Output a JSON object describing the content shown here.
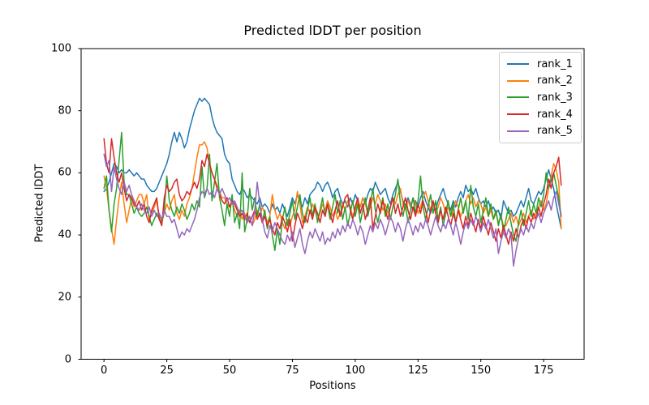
{
  "chart_data": {
    "type": "line",
    "title": "Predicted lDDT per position",
    "xlabel": "Positions",
    "ylabel": "Predicted lDDT",
    "xlim": [
      -9.1,
      191.1
    ],
    "ylim": [
      0,
      100
    ],
    "xticks": [
      0,
      25,
      50,
      75,
      100,
      125,
      150,
      175
    ],
    "yticks": [
      0,
      20,
      40,
      60,
      80,
      100
    ],
    "grid": false,
    "legend": {
      "position": "upper right",
      "entries": [
        "rank_1",
        "rank_2",
        "rank_3",
        "rank_4",
        "rank_5"
      ]
    },
    "x_start": 0,
    "x_step": 1,
    "n_positions": 183,
    "series": [
      {
        "name": "rank_1",
        "color": "#1f77b4",
        "values": [
          54,
          55,
          57,
          60,
          63,
          62,
          60,
          61,
          60,
          60,
          61,
          60,
          59,
          60,
          59,
          58,
          58,
          56,
          55,
          54,
          54,
          55,
          57,
          59,
          61,
          63,
          66,
          70,
          73,
          70,
          73,
          71,
          68,
          70,
          74,
          77,
          80,
          82,
          84,
          83,
          84,
          83,
          82,
          78,
          75,
          73,
          72,
          71,
          66,
          64,
          63,
          58,
          56,
          54,
          53,
          55,
          54,
          52,
          53,
          52,
          51,
          50,
          52,
          49,
          50,
          49,
          47,
          50,
          48,
          49,
          47,
          50,
          48,
          46,
          49,
          52,
          50,
          53,
          51,
          49,
          52,
          50,
          53,
          54,
          55,
          57,
          56,
          54,
          56,
          57,
          55,
          52,
          54,
          55,
          52,
          50,
          51,
          49,
          52,
          50,
          53,
          51,
          49,
          52,
          50,
          53,
          55,
          54,
          57,
          55,
          53,
          54,
          55,
          52,
          50,
          53,
          55,
          57,
          54,
          51,
          49,
          52,
          50,
          48,
          51,
          49,
          52,
          54,
          51,
          49,
          47,
          50,
          48,
          51,
          53,
          55,
          52,
          50,
          48,
          51,
          49,
          52,
          54,
          52,
          56,
          54,
          55,
          53,
          55,
          52,
          50,
          51,
          49,
          51,
          48,
          49,
          47,
          48,
          45,
          51,
          49,
          47,
          48,
          46,
          47,
          49,
          51,
          49,
          52,
          55,
          51,
          50,
          52,
          54,
          53,
          55,
          58,
          61,
          58,
          55,
          50,
          46,
          42
        ]
      },
      {
        "name": "rank_2",
        "color": "#ff7f0e",
        "values": [
          59,
          55,
          48,
          42,
          37,
          45,
          52,
          57,
          50,
          44,
          48,
          52,
          49,
          51,
          53,
          53,
          50,
          53,
          45,
          47,
          49,
          51,
          46,
          44,
          47,
          50,
          48,
          51,
          53,
          47,
          45,
          48,
          46,
          50,
          52,
          55,
          60,
          65,
          69,
          69,
          70,
          68,
          63,
          60,
          58,
          56,
          54,
          52,
          52,
          50,
          49,
          51,
          48,
          46,
          48,
          45,
          47,
          44,
          46,
          43,
          45,
          48,
          46,
          49,
          47,
          44,
          46,
          53,
          48,
          45,
          47,
          44,
          42,
          45,
          43,
          46,
          48,
          54,
          50,
          44,
          46,
          49,
          47,
          50,
          48,
          45,
          47,
          50,
          48,
          51,
          49,
          46,
          48,
          45,
          47,
          50,
          48,
          51,
          49,
          46,
          48,
          51,
          49,
          52,
          50,
          47,
          49,
          52,
          50,
          53,
          51,
          48,
          50,
          47,
          49,
          52,
          50,
          53,
          55,
          50,
          48,
          51,
          49,
          52,
          50,
          47,
          49,
          52,
          54,
          51,
          48,
          50,
          47,
          49,
          52,
          50,
          47,
          49,
          46,
          48,
          51,
          49,
          46,
          48,
          51,
          53,
          50,
          52,
          49,
          51,
          50,
          47,
          49,
          46,
          48,
          45,
          47,
          44,
          46,
          43,
          43,
          45,
          47,
          44,
          46,
          43,
          45,
          47,
          44,
          46,
          48,
          45,
          47,
          49,
          51,
          48,
          50,
          55,
          59,
          63,
          61,
          57,
          42
        ]
      },
      {
        "name": "rank_3",
        "color": "#2ca02c",
        "values": [
          55,
          59,
          48,
          41,
          50,
          55,
          64,
          73,
          57,
          53,
          53,
          50,
          47,
          49,
          47,
          46,
          47,
          49,
          46,
          43,
          45,
          47,
          45,
          44,
          48,
          59,
          51,
          48,
          46,
          49,
          47,
          50,
          48,
          45,
          47,
          50,
          48,
          51,
          49,
          62,
          52,
          55,
          66,
          51,
          57,
          63,
          52,
          48,
          43,
          50,
          46,
          53,
          44,
          47,
          42,
          60,
          41,
          45,
          55,
          48,
          52,
          46,
          50,
          44,
          48,
          42,
          46,
          40,
          35,
          42,
          37,
          45,
          49,
          43,
          47,
          51,
          45,
          49,
          53,
          47,
          44,
          48,
          52,
          46,
          50,
          44,
          48,
          52,
          46,
          50,
          45,
          49,
          53,
          47,
          51,
          45,
          49,
          43,
          47,
          51,
          46,
          50,
          44,
          48,
          52,
          46,
          50,
          55,
          48,
          44,
          48,
          52,
          46,
          50,
          45,
          49,
          53,
          58,
          50,
          46,
          50,
          44,
          48,
          52,
          47,
          51,
          59,
          49,
          45,
          49,
          53,
          47,
          51,
          45,
          49,
          43,
          47,
          51,
          46,
          50,
          44,
          48,
          52,
          47,
          51,
          45,
          56,
          49,
          46,
          50,
          44,
          48,
          52,
          46,
          50,
          45,
          48,
          43,
          47,
          41,
          45,
          49,
          44,
          40,
          38,
          44,
          48,
          43,
          47,
          51,
          46,
          50,
          47,
          52,
          49,
          53,
          60,
          55,
          58,
          60,
          56,
          52,
          46
        ]
      },
      {
        "name": "rank_4",
        "color": "#d62728",
        "values": [
          71,
          63,
          60,
          71,
          65,
          60,
          57,
          60,
          55,
          51,
          53,
          52,
          50,
          49,
          51,
          48,
          50,
          46,
          44,
          48,
          50,
          52,
          45,
          43,
          52,
          56,
          54,
          55,
          57,
          58,
          53,
          51,
          52,
          54,
          53,
          55,
          57,
          55,
          58,
          64,
          62,
          66,
          63,
          60,
          58,
          55,
          53,
          51,
          50,
          52,
          49,
          51,
          50,
          48,
          46,
          47,
          45,
          47,
          44,
          46,
          48,
          45,
          47,
          44,
          46,
          43,
          45,
          42,
          40,
          44,
          42,
          46,
          44,
          41,
          45,
          38,
          43,
          47,
          45,
          42,
          46,
          44,
          48,
          45,
          49,
          47,
          44,
          48,
          46,
          50,
          47,
          44,
          48,
          51,
          46,
          49,
          52,
          53,
          48,
          45,
          49,
          52,
          47,
          50,
          45,
          48,
          52,
          42,
          46,
          50,
          47,
          51,
          48,
          45,
          49,
          52,
          47,
          50,
          46,
          49,
          52,
          48,
          45,
          49,
          46,
          50,
          47,
          51,
          48,
          44,
          48,
          51,
          47,
          44,
          48,
          45,
          49,
          46,
          43,
          47,
          44,
          48,
          45,
          42,
          46,
          43,
          47,
          44,
          41,
          45,
          42,
          46,
          43,
          40,
          44,
          41,
          38,
          42,
          39,
          43,
          40,
          37,
          41,
          38,
          42,
          39,
          43,
          45,
          42,
          46,
          44,
          47,
          45,
          49,
          46,
          50,
          53,
          58,
          55,
          60,
          62,
          65,
          56
        ]
      },
      {
        "name": "rank_5",
        "color": "#9467bd",
        "values": [
          66,
          62,
          64,
          54,
          62,
          58,
          55,
          53,
          57,
          54,
          56,
          53,
          51,
          49,
          48,
          50,
          48,
          47,
          49,
          46,
          48,
          46,
          47,
          45,
          48,
          46,
          46,
          44,
          45,
          42,
          39,
          41,
          40,
          42,
          41,
          43,
          45,
          48,
          52,
          54,
          53,
          55,
          53,
          54,
          52,
          55,
          53,
          55,
          53,
          51,
          52,
          50,
          51,
          49,
          47,
          48,
          46,
          44,
          46,
          43,
          48,
          57,
          50,
          45,
          41,
          39,
          43,
          41,
          44,
          42,
          40,
          38,
          37,
          40,
          38,
          41,
          36,
          39,
          42,
          37,
          34,
          38,
          41,
          39,
          42,
          40,
          38,
          41,
          37,
          39,
          38,
          41,
          39,
          42,
          40,
          43,
          41,
          44,
          42,
          45,
          43,
          40,
          43,
          41,
          37,
          40,
          43,
          41,
          44,
          42,
          45,
          43,
          40,
          43,
          46,
          44,
          41,
          44,
          42,
          38,
          42,
          45,
          43,
          40,
          43,
          41,
          44,
          42,
          45,
          43,
          40,
          43,
          46,
          43,
          41,
          44,
          42,
          45,
          43,
          40,
          44,
          41,
          37,
          41,
          44,
          42,
          45,
          43,
          46,
          44,
          41,
          44,
          42,
          45,
          42,
          39,
          42,
          34,
          38,
          41,
          39,
          42,
          40,
          30,
          35,
          39,
          42,
          40,
          43,
          41,
          44,
          42,
          45,
          47,
          44,
          47,
          49,
          51,
          48,
          52,
          54,
          50,
          46
        ]
      }
    ]
  }
}
